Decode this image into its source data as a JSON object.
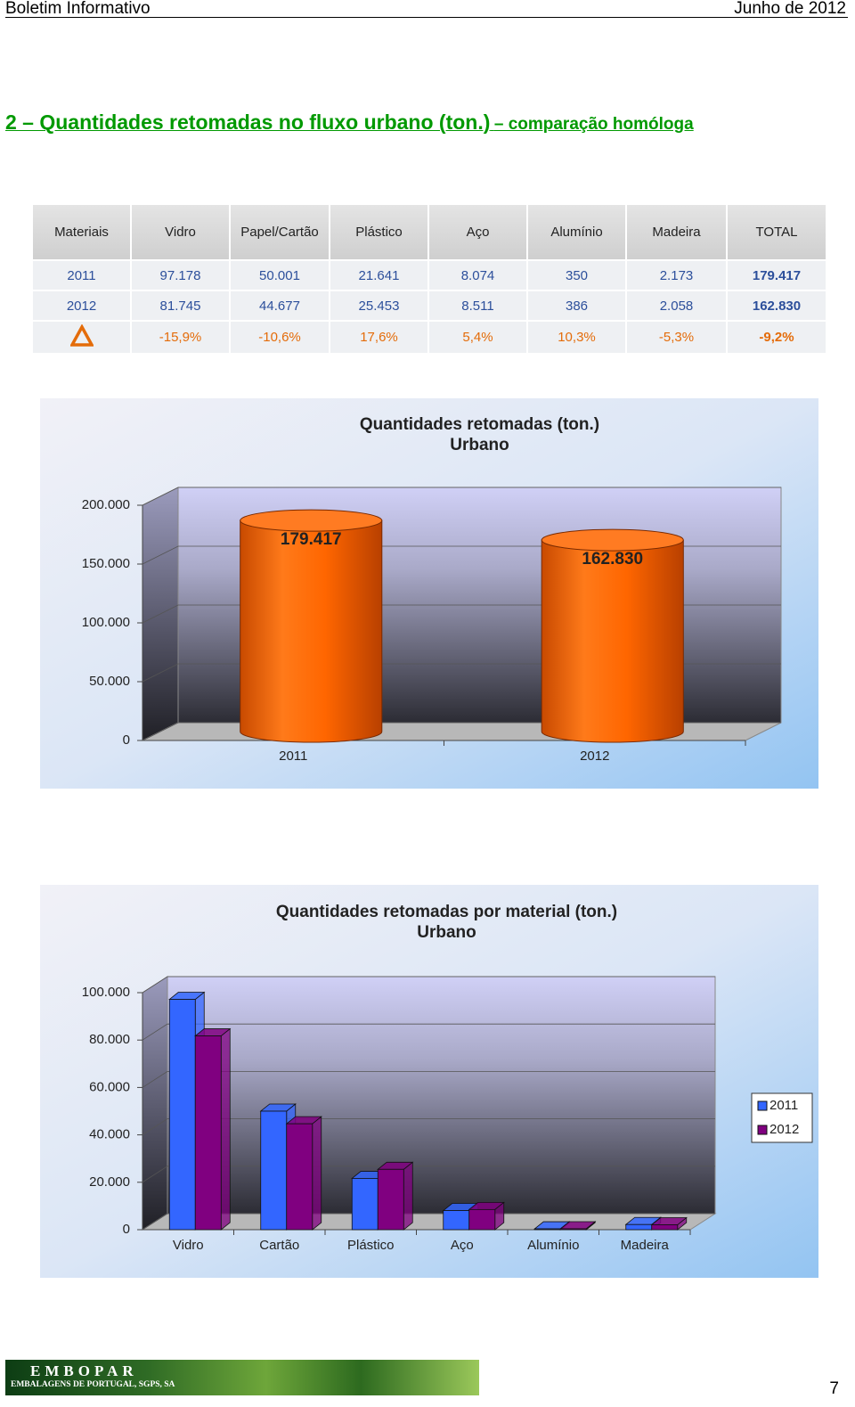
{
  "header": {
    "left": "Boletim Informativo",
    "right": "Junho de 2012"
  },
  "section": {
    "title": "2 – Quantidades retomadas no fluxo urbano (ton.)",
    "subtitle": "– comparação homóloga"
  },
  "table": {
    "columns": [
      "Materiais",
      "Vidro",
      "Papel/Cartão",
      "Plástico",
      "Aço",
      "Alumínio",
      "Madeira",
      "TOTAL"
    ],
    "rows": [
      [
        "2011",
        "97.178",
        "50.001",
        "21.641",
        "8.074",
        "350",
        "2.173",
        "179.417"
      ],
      [
        "2012",
        "81.745",
        "44.677",
        "25.453",
        "8.511",
        "386",
        "2.058",
        "162.830"
      ]
    ],
    "change_row": [
      "-15,9%",
      "-10,6%",
      "17,6%",
      "5,4%",
      "10,3%",
      "-5,3%",
      "-9,2%"
    ]
  },
  "chart_data": [
    {
      "type": "bar",
      "title": "Quantidades retomadas (ton.)",
      "subtitle": "Urbano",
      "categories": [
        "2011",
        "2012"
      ],
      "values": [
        179417,
        162830
      ],
      "value_labels": [
        "179.417",
        "162.830"
      ],
      "color": "#ff6600",
      "ylim": [
        0,
        200000
      ],
      "yticks": [
        0,
        {
          "value": 50000,
          "label": "50.000"
        },
        {
          "value": 100000,
          "label": "100.000"
        },
        {
          "value": 150000,
          "label": "150.000"
        },
        {
          "value": 200000,
          "label": "200.000"
        }
      ],
      "grid": true
    },
    {
      "type": "bar",
      "title": "Quantidades retomadas por material (ton.)",
      "subtitle": "Urbano",
      "categories": [
        "Vidro",
        "Cartão",
        "Plástico",
        "Aço",
        "Alumínio",
        "Madeira"
      ],
      "series": [
        {
          "name": "2011",
          "color": "#3366ff",
          "values": [
            97178,
            50001,
            21641,
            8074,
            350,
            2173
          ]
        },
        {
          "name": "2012",
          "color": "#800080",
          "values": [
            81745,
            44677,
            25453,
            8511,
            386,
            2058
          ]
        }
      ],
      "ylim": [
        0,
        100000
      ],
      "yticks": [
        0,
        {
          "value": 20000,
          "label": "20.000"
        },
        {
          "value": 40000,
          "label": "40.000"
        },
        {
          "value": 60000,
          "label": "60.000"
        },
        {
          "value": 80000,
          "label": "80.000"
        },
        {
          "value": 100000,
          "label": "100.000"
        }
      ],
      "grid": true,
      "legend": "right"
    }
  ],
  "footer": {
    "brand": "EMBOPAR",
    "company": "EMBALAGENS DE PORTUGAL, SGPS, SA",
    "page": "7"
  }
}
